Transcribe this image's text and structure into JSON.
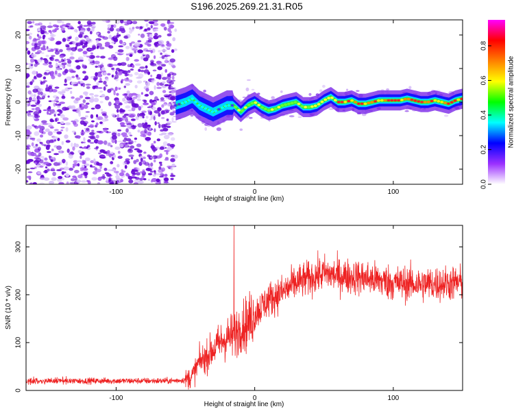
{
  "figure": {
    "title": "S196.2025.269.21.31.R05"
  },
  "chart_data": [
    {
      "type": "heatmap",
      "name": "spectrogram",
      "xlabel": "Height of straight line (km)",
      "ylabel": "Frequency (Hz)",
      "xlim": [
        -165,
        150
      ],
      "ylim": [
        -24.5,
        24.5
      ],
      "xticks": [
        -100,
        0,
        100
      ],
      "xtick_labels": [
        "-100",
        "0",
        "100"
      ],
      "yticks": [
        -20,
        -10,
        0,
        10,
        20
      ],
      "ytick_labels": [
        "-20",
        "-10",
        "0",
        "10",
        "20"
      ],
      "noise_region_end_km": -60,
      "signal_centerline": {
        "x": [
          -57,
          -50,
          -45,
          -40,
          -35,
          -30,
          -25,
          -20,
          -15,
          -10,
          -5,
          0,
          5,
          10,
          15,
          20,
          25,
          30,
          35,
          40,
          45,
          50,
          55,
          60,
          65,
          70,
          75,
          80,
          85,
          90,
          95,
          100,
          105,
          110,
          115,
          120,
          125,
          130,
          135,
          140,
          145,
          150
        ],
        "y": [
          -1,
          0,
          1,
          -1,
          -2,
          -3,
          -2,
          -1,
          -1,
          -3,
          -1,
          0,
          -1.5,
          -2.5,
          -2,
          -1,
          -0.5,
          0,
          -1.5,
          -1.5,
          -1,
          0.5,
          1.5,
          0,
          0,
          0.5,
          -0.5,
          -0.5,
          0,
          0.5,
          0.5,
          0.5,
          0.5,
          1,
          0.5,
          0,
          0,
          0.5,
          0,
          -0.5,
          0.5,
          1
        ]
      },
      "colorbar": {
        "label": "Normalized spectral amplitude",
        "range": [
          0.0,
          0.95
        ],
        "ticks": [
          0.0,
          0.2,
          0.4,
          0.6,
          0.8
        ],
        "tick_labels": [
          "0.0",
          "0.2",
          "0.4",
          "0.6",
          "0.8"
        ],
        "colors": [
          "#ffffff",
          "#9b30ff",
          "#0000ff",
          "#00ffff",
          "#00ff00",
          "#ffff00",
          "#ff8000",
          "#ff0000",
          "#ff00ff"
        ]
      }
    },
    {
      "type": "line",
      "name": "snr",
      "xlabel": "Height of straight line (km)",
      "ylabel": "SNR (10 * v/v)",
      "xlim": [
        -165,
        150
      ],
      "ylim": [
        0,
        345
      ],
      "xticks": [
        -100,
        0,
        100
      ],
      "xtick_labels": [
        "-100",
        "0",
        "100"
      ],
      "yticks": [
        0,
        100,
        200,
        300
      ],
      "ytick_labels": [
        "0",
        "100",
        "200",
        "300"
      ],
      "series": [
        {
          "name": "SNR",
          "color": "#ee2222",
          "trend_x": [
            -165,
            -60,
            -50,
            -45,
            -40,
            -35,
            -30,
            -25,
            -20,
            -15,
            -10,
            -5,
            0,
            10,
            20,
            30,
            40,
            50,
            60,
            80,
            100,
            120,
            150
          ],
          "trend_y": [
            20,
            20,
            22,
            30,
            60,
            70,
            85,
            100,
            110,
            115,
            135,
            140,
            160,
            190,
            205,
            225,
            235,
            245,
            240,
            235,
            225,
            222,
            225
          ],
          "peak_x": -15,
          "peak_y": 345
        }
      ]
    }
  ]
}
